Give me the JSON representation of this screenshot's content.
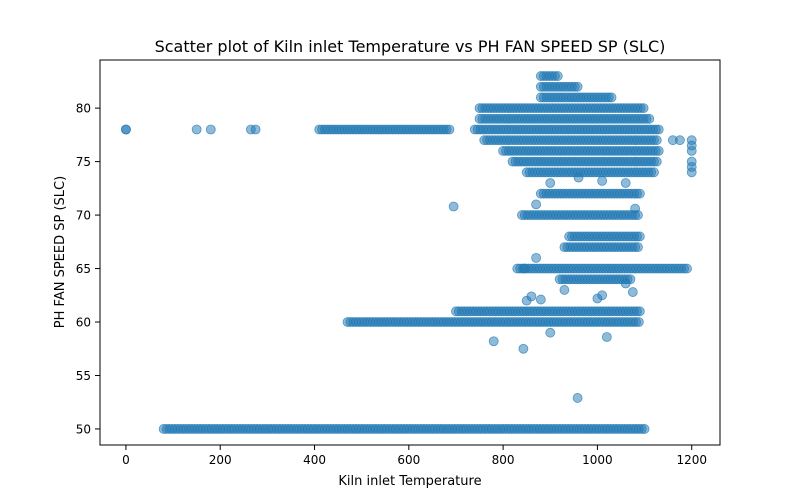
{
  "chart_data": {
    "type": "scatter",
    "title": "Scatter plot of Kiln inlet Temperature vs PH FAN SPEED SP (SLC)",
    "xlabel": "Kiln inlet Temperature",
    "ylabel": "PH FAN SPEED SP (SLC)",
    "xlim": [
      -55,
      1260
    ],
    "ylim": [
      48.5,
      84.5
    ],
    "xticks": [
      0,
      200,
      400,
      600,
      800,
      1000,
      1200
    ],
    "yticks": [
      50,
      55,
      60,
      65,
      70,
      75,
      80
    ],
    "marker_color": "#1f77b4",
    "marker_alpha": 0.5,
    "grid": false,
    "dense_runs": [
      {
        "y": 50,
        "x_start": 80,
        "x_end": 1100
      },
      {
        "y": 60,
        "x_start": 470,
        "x_end": 1090
      },
      {
        "y": 61,
        "x_start": 700,
        "x_end": 1090
      },
      {
        "y": 65,
        "x_start": 830,
        "x_end": 1190
      },
      {
        "y": 70,
        "x_start": 840,
        "x_end": 1090
      },
      {
        "y": 72,
        "x_start": 880,
        "x_end": 1090
      },
      {
        "y": 74,
        "x_start": 850,
        "x_end": 1120
      },
      {
        "y": 75,
        "x_start": 820,
        "x_end": 1130
      },
      {
        "y": 76,
        "x_start": 800,
        "x_end": 1130
      },
      {
        "y": 77,
        "x_start": 760,
        "x_end": 1130
      },
      {
        "y": 78,
        "x_start": 410,
        "x_end": 690
      },
      {
        "y": 78,
        "x_start": 740,
        "x_end": 1130
      },
      {
        "y": 79,
        "x_start": 750,
        "x_end": 1110
      },
      {
        "y": 80,
        "x_start": 750,
        "x_end": 1100
      },
      {
        "y": 81,
        "x_start": 880,
        "x_end": 1030
      },
      {
        "y": 82,
        "x_start": 880,
        "x_end": 960
      },
      {
        "y": 83,
        "x_start": 880,
        "x_end": 920
      },
      {
        "y": 68,
        "x_start": 940,
        "x_end": 1090
      },
      {
        "y": 67,
        "x_start": 930,
        "x_end": 1090
      },
      {
        "y": 64,
        "x_start": 920,
        "x_end": 1070
      }
    ],
    "points": [
      {
        "x": 0,
        "y": 78
      },
      {
        "x": 0,
        "y": 78
      },
      {
        "x": 150,
        "y": 78
      },
      {
        "x": 180,
        "y": 78
      },
      {
        "x": 265,
        "y": 78
      },
      {
        "x": 275,
        "y": 78
      },
      {
        "x": 695,
        "y": 70.8
      },
      {
        "x": 780,
        "y": 58.2
      },
      {
        "x": 843,
        "y": 57.5
      },
      {
        "x": 900,
        "y": 59
      },
      {
        "x": 958,
        "y": 52.9
      },
      {
        "x": 1020,
        "y": 58.6
      },
      {
        "x": 850,
        "y": 62
      },
      {
        "x": 860,
        "y": 62.4
      },
      {
        "x": 880,
        "y": 62.1
      },
      {
        "x": 1010,
        "y": 62.5
      },
      {
        "x": 1000,
        "y": 62.2
      },
      {
        "x": 1060,
        "y": 63.6
      },
      {
        "x": 1075,
        "y": 62.8
      },
      {
        "x": 870,
        "y": 66
      },
      {
        "x": 845,
        "y": 65
      },
      {
        "x": 930,
        "y": 63
      },
      {
        "x": 870,
        "y": 71
      },
      {
        "x": 900,
        "y": 73
      },
      {
        "x": 960,
        "y": 73.5
      },
      {
        "x": 1010,
        "y": 73.2
      },
      {
        "x": 1060,
        "y": 73
      },
      {
        "x": 1080,
        "y": 70.6
      },
      {
        "x": 1160,
        "y": 77
      },
      {
        "x": 1175,
        "y": 77
      },
      {
        "x": 1200,
        "y": 74
      },
      {
        "x": 1200,
        "y": 75
      },
      {
        "x": 1200,
        "y": 76
      },
      {
        "x": 1200,
        "y": 77
      },
      {
        "x": 1200,
        "y": 74.5
      },
      {
        "x": 1200,
        "y": 76.5
      }
    ]
  }
}
